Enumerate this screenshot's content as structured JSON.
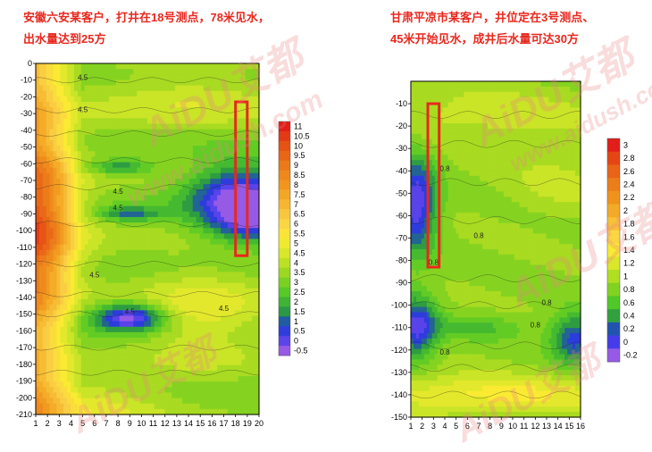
{
  "captions": {
    "left_line1": "安徽六安某客户，打井在18号测点，78米见水，",
    "left_line2": "出水量达到25方",
    "right_line1": "甘肃平凉市某客户，井位定在3号测点、",
    "right_line2": "45米开始见水，成井后水量可达30方"
  },
  "watermark": {
    "brand": "AiDU艾都",
    "site": "www.aidush.com"
  },
  "chart_data": [
    {
      "type": "heatmap",
      "x": [
        1,
        2,
        3,
        4,
        5,
        6,
        7,
        8,
        9,
        10,
        11,
        12,
        13,
        14,
        15,
        16,
        17,
        18,
        19,
        20
      ],
      "y_ticks": [
        0,
        -10,
        -20,
        -30,
        -40,
        -50,
        -60,
        -70,
        -80,
        -90,
        -100,
        -110,
        -120,
        -130,
        -140,
        -150,
        -160,
        -170,
        -180,
        -190,
        -200,
        -210
      ],
      "ylim": [
        -210,
        0
      ],
      "colorbar_ticks": [
        11,
        10.5,
        10,
        9.5,
        9,
        8.5,
        8,
        7.5,
        7,
        6.5,
        6,
        5.5,
        5,
        4.5,
        4,
        3.5,
        3,
        2.5,
        2,
        1.5,
        1,
        0.5,
        0,
        -0.5
      ],
      "contour_labels": [
        "4.5",
        "4.5",
        "4.5",
        "4.5",
        "4.5",
        "4.5",
        "4.5"
      ],
      "highlight": {
        "x_range": [
          18,
          19
        ],
        "depth_range": [
          -23,
          -115
        ]
      }
    },
    {
      "type": "heatmap",
      "x": [
        1,
        2,
        3,
        4,
        5,
        6,
        7,
        8,
        9,
        10,
        11,
        12,
        13,
        14,
        15,
        16
      ],
      "y_ticks": [
        -10,
        -20,
        -30,
        -40,
        -50,
        -60,
        -70,
        -80,
        -90,
        -100,
        -110,
        -120,
        -130,
        -140,
        -150
      ],
      "ylim": [
        -150,
        0
      ],
      "colorbar_ticks": [
        3,
        2.8,
        2.6,
        2.4,
        2.2,
        2,
        1.8,
        1.6,
        1.4,
        1.2,
        1,
        0.8,
        0.6,
        0.4,
        0.2,
        0,
        -0.2
      ],
      "contour_labels": [
        "0.8",
        "0.8",
        "0.8",
        "0.8",
        "0.8",
        "0.8"
      ],
      "highlight": {
        "x_range": [
          2.5,
          3.5
        ],
        "depth_range": [
          -10,
          -83
        ]
      }
    }
  ]
}
